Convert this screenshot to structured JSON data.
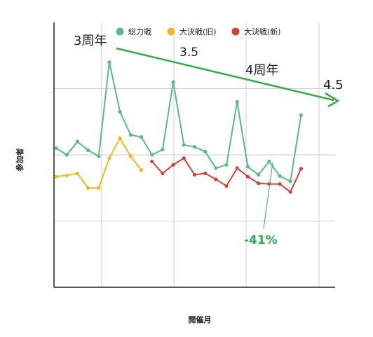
{
  "chart_data": {
    "type": "line",
    "xlabel": "開催月",
    "ylabel": "参加者",
    "grid": true,
    "legend_position": "top",
    "ylim": [
      0,
      4
    ],
    "n_points": 27,
    "x_index_range": [
      0,
      26
    ],
    "series": [
      {
        "name": "総力戦",
        "color": "#5cb88a",
        "points": [
          [
            0,
            2.1
          ],
          [
            1,
            2.0
          ],
          [
            2,
            2.2
          ],
          [
            3,
            2.07
          ],
          [
            4,
            1.98
          ],
          [
            5,
            3.4
          ],
          [
            6,
            2.65
          ],
          [
            7,
            2.3
          ],
          [
            8,
            2.27
          ],
          [
            9,
            2.0
          ],
          [
            10,
            2.08
          ],
          [
            11,
            3.1
          ],
          [
            12,
            2.15
          ],
          [
            13,
            2.12
          ],
          [
            14,
            2.05
          ],
          [
            15,
            1.8
          ],
          [
            16,
            1.85
          ],
          [
            17,
            2.8
          ],
          [
            18,
            1.82
          ],
          [
            19,
            1.7
          ],
          [
            20,
            1.9
          ],
          [
            21,
            1.68
          ],
          [
            22,
            1.6
          ],
          [
            23,
            2.6
          ]
        ]
      },
      {
        "name": "大決戦(旧)",
        "color": "#edb825",
        "points": [
          [
            0,
            1.67
          ],
          [
            1,
            1.69
          ],
          [
            2,
            1.72
          ],
          [
            3,
            1.5
          ],
          [
            4,
            1.5
          ],
          [
            5,
            1.95
          ],
          [
            6,
            2.25
          ],
          [
            7,
            1.98
          ],
          [
            8,
            1.77
          ]
        ]
      },
      {
        "name": "大決戦(新)",
        "color": "#cc4339",
        "points": [
          [
            9,
            1.9
          ],
          [
            10,
            1.72
          ],
          [
            11,
            1.85
          ],
          [
            12,
            1.95
          ],
          [
            13,
            1.7
          ],
          [
            14,
            1.72
          ],
          [
            15,
            1.63
          ],
          [
            16,
            1.53
          ],
          [
            17,
            1.8
          ],
          [
            18,
            1.67
          ],
          [
            19,
            1.57
          ],
          [
            20,
            1.56
          ],
          [
            21,
            1.56
          ],
          [
            22,
            1.44
          ],
          [
            23,
            1.79
          ]
        ]
      }
    ],
    "annotations": [
      {
        "text": "3周年",
        "color": "#222222"
      },
      {
        "text": "3.5",
        "color": "#222222"
      },
      {
        "text": "4周年",
        "color": "#222222"
      },
      {
        "text": "4.5",
        "color": "#222222"
      },
      {
        "text": "-41%",
        "color": "#2fa84f"
      }
    ],
    "trend_arrow_color": "#3aa84a",
    "pointer_line_color": "#3aa84a"
  }
}
